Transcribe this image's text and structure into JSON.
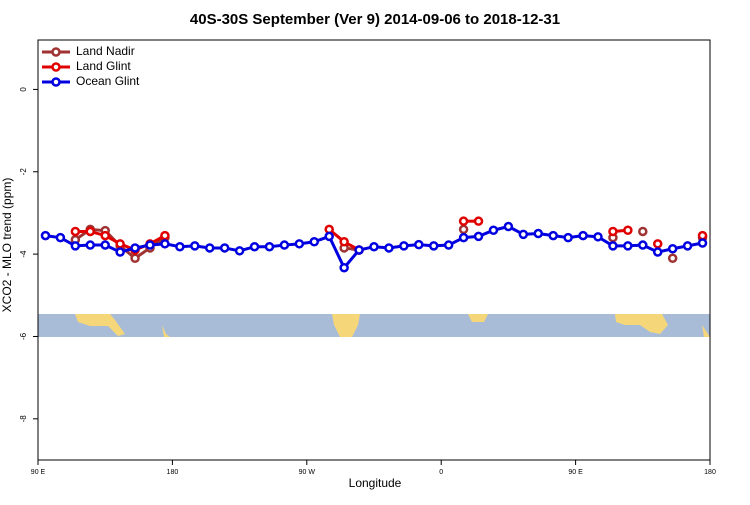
{
  "chart_data": {
    "type": "line",
    "title": "40S-30S September (Ver 9)   2014-09-06 to 2018-12-31",
    "x_label": "Longitude",
    "y_label": "XCO2 - MLO trend (ppm)",
    "x": [
      95,
      105,
      115,
      125,
      135,
      145,
      155,
      165,
      175,
      185,
      195,
      205,
      215,
      225,
      235,
      245,
      255,
      265,
      275,
      285,
      295,
      305,
      315,
      325,
      335,
      345,
      355,
      365,
      375,
      385,
      395,
      405,
      415,
      425,
      435,
      445,
      455,
      465,
      475,
      485,
      495,
      505,
      515,
      525,
      535
    ],
    "series": [
      {
        "name": "Land Nadir",
        "color": "#a03232",
        "values": [
          null,
          null,
          -3.65,
          -3.4,
          -3.43,
          -3.8,
          -4.1,
          -3.85,
          -3.6,
          null,
          null,
          null,
          null,
          null,
          null,
          null,
          null,
          null,
          null,
          null,
          -3.85,
          -3.9,
          null,
          null,
          null,
          null,
          null,
          null,
          -3.4,
          null,
          null,
          null,
          null,
          null,
          null,
          null,
          null,
          null,
          -3.6,
          null,
          -3.45,
          null,
          -4.1,
          null,
          -3.6
        ]
      },
      {
        "name": "Land Glint",
        "color": "#e00000",
        "values": [
          null,
          null,
          -3.45,
          -3.45,
          -3.55,
          -3.75,
          -3.9,
          -3.75,
          -3.55,
          null,
          null,
          null,
          null,
          null,
          null,
          null,
          null,
          null,
          null,
          -3.4,
          -3.7,
          -3.9,
          null,
          null,
          null,
          null,
          null,
          null,
          -3.2,
          -3.2,
          null,
          null,
          null,
          null,
          null,
          null,
          null,
          null,
          -3.45,
          -3.42,
          null,
          -3.75,
          null,
          null,
          -3.55
        ]
      },
      {
        "name": "Ocean Glint",
        "color": "#0000e0",
        "values": [
          -3.55,
          -3.6,
          -3.8,
          -3.78,
          -3.78,
          -3.95,
          -3.85,
          -3.78,
          -3.75,
          -3.82,
          -3.8,
          -3.85,
          -3.85,
          -3.92,
          -3.82,
          -3.82,
          -3.78,
          -3.75,
          -3.7,
          -3.57,
          -4.33,
          -3.9,
          -3.82,
          -3.85,
          -3.8,
          -3.77,
          -3.8,
          -3.78,
          -3.6,
          -3.57,
          -3.42,
          -3.33,
          -3.52,
          -3.5,
          -3.55,
          -3.6,
          -3.55,
          -3.58,
          -3.8,
          -3.8,
          -3.78,
          -3.95,
          -3.87,
          -3.8,
          -3.73
        ]
      }
    ],
    "xlim": [
      90,
      540
    ],
    "xticks": [
      {
        "value": 90,
        "label": "90 E"
      },
      180,
      {
        "value": 270,
        "label": "90 W"
      },
      {
        "value": 360,
        "label": "0"
      },
      {
        "value": 450,
        "label": "90 E"
      },
      {
        "value": 540,
        "label": "180"
      }
    ],
    "ylim": [
      -9,
      1.2
    ],
    "yticks": [
      0,
      -2,
      -4,
      -6,
      -8
    ],
    "legend": "top-left"
  }
}
